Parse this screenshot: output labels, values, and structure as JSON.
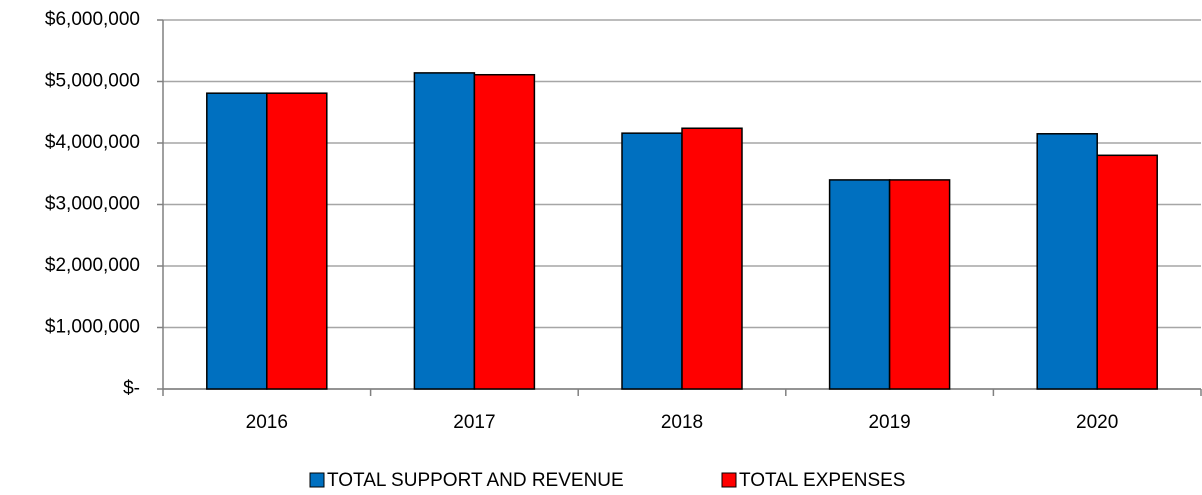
{
  "chart_data": {
    "type": "bar",
    "categories": [
      "2016",
      "2017",
      "2018",
      "2019",
      "2020"
    ],
    "series": [
      {
        "name": "TOTAL SUPPORT AND REVENUE",
        "color": "#0070c0",
        "values": [
          4810000,
          5140000,
          4160000,
          3400000,
          4150000
        ]
      },
      {
        "name": "TOTAL EXPENSES",
        "color": "#ff0000",
        "values": [
          4810000,
          5110000,
          4240000,
          3400000,
          3800000
        ]
      }
    ],
    "ylim": [
      0,
      6000000
    ],
    "yticks": [
      {
        "value": 0,
        "label": "$-"
      },
      {
        "value": 1000000,
        "label": "$1,000,000"
      },
      {
        "value": 2000000,
        "label": "$2,000,000"
      },
      {
        "value": 3000000,
        "label": "$3,000,000"
      },
      {
        "value": 4000000,
        "label": "$4,000,000"
      },
      {
        "value": 5000000,
        "label": "$5,000,000"
      },
      {
        "value": 6000000,
        "label": "$6,000,000"
      }
    ],
    "grid": true,
    "legend": "bottom"
  }
}
